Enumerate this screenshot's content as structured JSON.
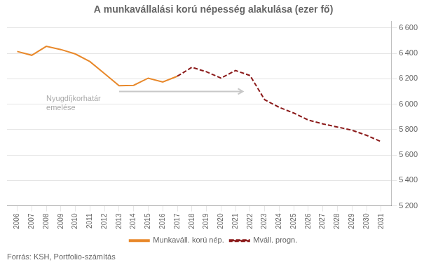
{
  "chart_data": {
    "type": "line",
    "title": "A munkavállalási korú népesség alakulása (ezer fő)",
    "source": "Forrás: KSH, Portfolio-számítás",
    "series": [
      {
        "name": "Munkaváll. korú nép.",
        "color": "#E8882A",
        "line_style": "solid",
        "x": [
          2006,
          2007,
          2008,
          2009,
          2010,
          2011,
          2012,
          2013,
          2014,
          2015,
          2016,
          2017
        ],
        "values": [
          6415,
          6385,
          6455,
          6430,
          6395,
          6335,
          6240,
          6145,
          6148,
          6205,
          6175,
          6220
        ]
      },
      {
        "name": "Mváll. progn.",
        "color": "#8B1A1A",
        "line_style": "dashed",
        "x": [
          2017,
          2018,
          2019,
          2020,
          2021,
          2022,
          2023,
          2024,
          2025,
          2026,
          2027,
          2028,
          2029,
          2030,
          2031
        ],
        "values": [
          6220,
          6290,
          6255,
          6205,
          6265,
          6225,
          6035,
          5975,
          5930,
          5875,
          5845,
          5820,
          5795,
          5755,
          5705
        ]
      }
    ],
    "xlim": [
      2005.3,
      2031.7
    ],
    "xticks": [
      2006,
      2007,
      2008,
      2009,
      2010,
      2011,
      2012,
      2013,
      2014,
      2015,
      2016,
      2017,
      2018,
      2019,
      2020,
      2021,
      2022,
      2023,
      2024,
      2025,
      2026,
      2027,
      2028,
      2029,
      2030,
      2031
    ],
    "ylim": [
      5200,
      6650
    ],
    "yticks": [
      {
        "value": 5200,
        "label": "5 200"
      },
      {
        "value": 5400,
        "label": "5 400"
      },
      {
        "value": 5600,
        "label": "5 600"
      },
      {
        "value": 5800,
        "label": "5 800"
      },
      {
        "value": 6000,
        "label": "6 000"
      },
      {
        "value": 6200,
        "label": "6 200"
      },
      {
        "value": 6400,
        "label": "6 400"
      },
      {
        "value": 6600,
        "label": "6 600"
      }
    ],
    "grid": "y",
    "legend": "bottom",
    "annotations": [
      {
        "text": "Nyugdíjkorhatár",
        "x": 2008.0,
        "y": 6075,
        "color": "#AAAAAA"
      },
      {
        "text": "emelése",
        "x": 2008.0,
        "y": 6000,
        "color": "#AAAAAA"
      }
    ],
    "arrows": [
      {
        "x": 2013.0,
        "y": 6100,
        "x_end": 2021.5,
        "y_end": 6100,
        "color": "#C8C8C8"
      }
    ]
  }
}
